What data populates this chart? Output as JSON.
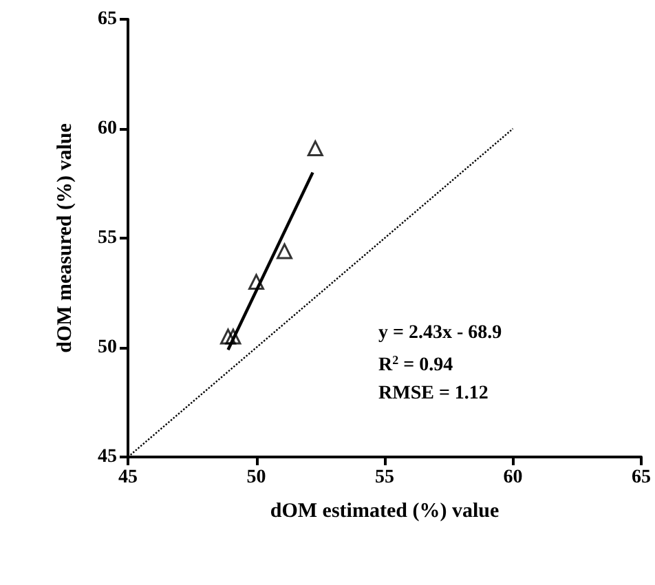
{
  "chart_data": {
    "type": "scatter",
    "xlabel": "dOM estimated (%) value",
    "ylabel": "dOM measured (%) value",
    "xlim": [
      45,
      65
    ],
    "xticks": [
      45,
      50,
      55,
      60,
      65
    ],
    "ylim": [
      45,
      65
    ],
    "yticks": [
      45,
      50,
      55,
      60,
      65
    ],
    "grid": false,
    "series": [
      {
        "color": "#000000",
        "marker": "triangle",
        "x": [
          48.9,
          49.1,
          50.0,
          51.1,
          52.3
        ],
        "values": [
          50.5,
          50.5,
          53.0,
          54.4,
          59.1
        ]
      },
      {
        "type": "line",
        "color": "#000000",
        "marker": "none",
        "line_style": "solid",
        "x": [
          48.9,
          52.2
        ],
        "values": [
          49.9,
          58.0
        ]
      },
      {
        "type": "line",
        "color": "#000000",
        "marker": "none",
        "line_style": "dotted",
        "x": [
          45,
          60
        ],
        "values": [
          45,
          60
        ]
      }
    ],
    "annotations": [
      "y = 2.43x - 68.9",
      "R$^{2}$ = 0.94",
      "RMSE = 1.12"
    ]
  }
}
